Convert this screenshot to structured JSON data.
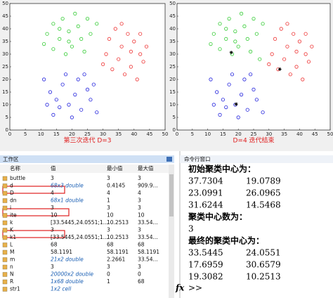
{
  "chart_data": [
    {
      "type": "scatter",
      "xlabel": "第三次迭代 D=3",
      "xlim": [
        0,
        50
      ],
      "ylim": [
        0,
        50
      ],
      "xticks": [
        0,
        5,
        10,
        15,
        20,
        25,
        30,
        35,
        40,
        45,
        50
      ],
      "yticks": [
        0,
        5,
        10,
        15,
        20,
        25,
        30,
        35,
        40,
        45,
        50
      ],
      "grid": false,
      "series": [
        {
          "color": "#33cc33",
          "x": [
            12,
            14,
            16,
            17,
            19,
            20,
            22,
            23,
            25,
            18,
            14,
            21,
            26,
            24,
            11,
            16,
            28,
            19
          ],
          "y": [
            38,
            42,
            36,
            44,
            39,
            33,
            41,
            36,
            44,
            30,
            32,
            46,
            38,
            31,
            34,
            40,
            42,
            35
          ]
        },
        {
          "color": "#ee3333",
          "x": [
            32,
            34,
            36,
            38,
            40,
            42,
            35,
            39,
            43,
            31,
            37,
            41,
            33,
            44,
            36,
            39,
            30,
            42
          ],
          "y": [
            36,
            40,
            33,
            38,
            35,
            30,
            28,
            25,
            27,
            30,
            22,
            20,
            24,
            33,
            42,
            31,
            26,
            38
          ]
        },
        {
          "color": "#2222dd",
          "x": [
            11,
            13,
            15,
            17,
            19,
            21,
            23,
            25,
            14,
            18,
            22,
            26,
            12,
            20,
            24,
            16,
            27,
            28
          ],
          "y": [
            20,
            15,
            12,
            18,
            10,
            14,
            8,
            16,
            6,
            22,
            20,
            12,
            10,
            5,
            22,
            9,
            18,
            7
          ]
        }
      ]
    },
    {
      "type": "scatter",
      "xlabel": "D=4 迭代结束",
      "xlim": [
        0,
        50
      ],
      "ylim": [
        0,
        50
      ],
      "xticks": [
        0,
        5,
        10,
        15,
        20,
        25,
        30,
        35,
        40,
        45,
        50
      ],
      "yticks": [
        0,
        5,
        10,
        15,
        20,
        25,
        30,
        35,
        40,
        45,
        50
      ],
      "grid": false,
      "series": [
        {
          "color": "#33cc33",
          "x": [
            12,
            14,
            16,
            17,
            19,
            20,
            22,
            23,
            25,
            18,
            14,
            21,
            26,
            24,
            11,
            16,
            28,
            19,
            27
          ],
          "y": [
            38,
            42,
            36,
            44,
            39,
            33,
            41,
            36,
            44,
            30,
            32,
            46,
            38,
            31,
            34,
            40,
            42,
            35,
            28
          ]
        },
        {
          "color": "#ee3333",
          "x": [
            32,
            34,
            36,
            38,
            40,
            42,
            35,
            39,
            43,
            31,
            37,
            41,
            33,
            44,
            36,
            39,
            30,
            42
          ],
          "y": [
            36,
            40,
            33,
            38,
            35,
            30,
            28,
            25,
            27,
            30,
            22,
            20,
            24,
            33,
            42,
            31,
            26,
            38
          ]
        },
        {
          "color": "#2222dd",
          "x": [
            11,
            13,
            15,
            17,
            19,
            21,
            23,
            25,
            14,
            18,
            22,
            26,
            12,
            20,
            24,
            16,
            28
          ],
          "y": [
            20,
            15,
            12,
            18,
            10,
            14,
            8,
            16,
            6,
            22,
            20,
            12,
            10,
            5,
            22,
            9,
            7
          ]
        }
      ]
    }
  ],
  "workspace": {
    "title": "工作区",
    "columns": [
      "名称",
      "值",
      "最小值",
      "最大值"
    ],
    "rows": [
      [
        "buttle",
        3,
        3,
        3
      ],
      [
        "d",
        "68x3 double",
        0.4145,
        "909.9..."
      ],
      [
        "D",
        4,
        4,
        4
      ],
      [
        "dn",
        "68x1 double",
        1,
        3
      ],
      [
        "i",
        3,
        3,
        3
      ],
      [
        "ite",
        10,
        10,
        10
      ],
      [
        "k",
        "[33.5445,24.0551;1...",
        10.2513,
        "33.54..."
      ],
      [
        "K",
        3,
        3,
        3
      ],
      [
        "k1",
        "[33.5445,24.0551;1...",
        10.2513,
        "33.54..."
      ],
      [
        "L",
        68,
        68,
        68
      ],
      [
        "M",
        58.1191,
        58.1191,
        58.1191
      ],
      [
        "m",
        "21x2 double",
        2.2661,
        "33.54..."
      ],
      [
        "n",
        3,
        3,
        3
      ],
      [
        "N",
        "20000x2 double",
        0,
        0
      ],
      [
        "R",
        "1x68 double",
        1,
        68
      ],
      [
        "str1",
        "1x2 cell",
        "",
        ""
      ]
    ]
  },
  "command_window": {
    "title": "命令行窗口",
    "lines": [
      "初始聚类中心为：",
      [
        37.7304,
        19.0789
      ],
      [
        23.0991,
        26.0965
      ],
      [
        31.6244,
        14.5468
      ],
      "聚类中心数为：",
      3,
      "最终的聚类中心为：",
      [
        33.5445,
        24.0551
      ],
      [
        17.6959,
        30.6579
      ],
      [
        19.3082,
        10.2513
      ]
    ],
    "prompt": ">>"
  }
}
